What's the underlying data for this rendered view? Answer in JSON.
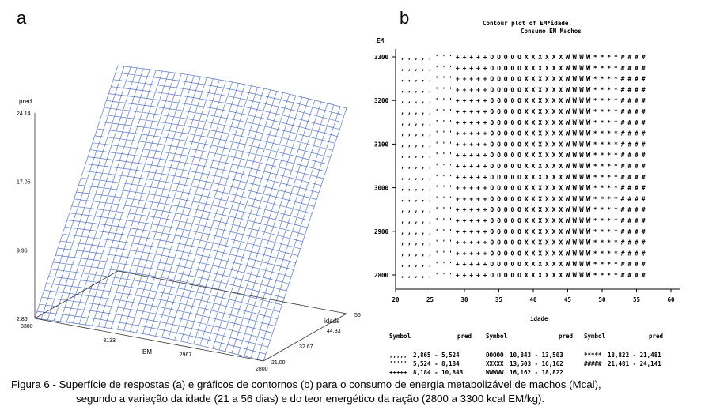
{
  "panels": {
    "a": "a",
    "b": "b"
  },
  "chart_data": [
    {
      "type": "surface",
      "axes": {
        "z": {
          "label": "pred",
          "ticks": [
            "2.86",
            "9.96",
            "17.05",
            "24.14"
          ],
          "range": [
            2.86,
            24.14
          ]
        },
        "x": {
          "label": "EM",
          "ticks": [
            "3300",
            "3133",
            "2967",
            "2800"
          ],
          "range": [
            2800,
            3300
          ]
        },
        "y": {
          "label": "idade",
          "ticks": [
            "21.00",
            "32.67",
            "44.33",
            "56"
          ],
          "range": [
            21,
            56
          ]
        }
      },
      "surface": {
        "z_at_min_idade": 2.86,
        "z_at_max_idade": 24.14
      }
    },
    {
      "type": "contour",
      "title": [
        "Contour plot of EM*idade,",
        "Consumo EM Machos"
      ],
      "y_axis": {
        "label": "EM",
        "ticks": [
          "3300",
          "3200",
          "3100",
          "3000",
          "2900",
          "2800"
        ],
        "range": [
          2800,
          3300
        ]
      },
      "x_axis": {
        "label": "idade",
        "ticks": [
          "20",
          "25",
          "30",
          "35",
          "40",
          "45",
          "50",
          "55",
          "60"
        ],
        "range": [
          20,
          60
        ]
      },
      "grid": {
        "idade_start": 21,
        "idade_step": 1,
        "n_cols": 36,
        "em_start": 2800,
        "em_step": 25,
        "n_rows": 21
      },
      "band_boundaries": [
        {
          "idade_low": 21,
          "idade_high": 25
        },
        {
          "idade_low": 26,
          "idade_high": 28
        },
        {
          "idade_low": 29,
          "idade_high": 33
        },
        {
          "idade_low": 34,
          "idade_high": 38
        },
        {
          "idade_low": 39,
          "idade_high": 44
        },
        {
          "idade_low": 45,
          "idade_high": 48
        },
        {
          "idade_low": 49,
          "idade_high": 52
        },
        {
          "idade_low": 53,
          "idade_high": 56
        }
      ],
      "legend": {
        "header": {
          "symbol": "Symbol",
          "pred": "pred"
        },
        "entries": [
          {
            "symbol": ",,,,,",
            "range": "2,865 - 5,524"
          },
          {
            "symbol": "'''''",
            "range": "5,524 - 8,184"
          },
          {
            "symbol": "+++++",
            "range": "8,184 - 10,843"
          },
          {
            "symbol": "OOOOO",
            "range": "10,843 - 13,503"
          },
          {
            "symbol": "XXXXX",
            "range": "13,503 - 16,162"
          },
          {
            "symbol": "WWWWW",
            "range": "16,162 - 18,822"
          },
          {
            "symbol": "*****",
            "range": "18,822 - 21,481"
          },
          {
            "symbol": "#####",
            "range": "21,481 - 24,141"
          }
        ]
      }
    }
  ],
  "caption": {
    "line1": "Figura 6 - Superfície de respostas (a) e gráficos de contornos (b) para o consumo de energia metabolizável de machos (Mcal),",
    "line2": "segundo a variação da idade (21 a 56 dias) e do teor energético da ração (2800 a 3300 kcal EM/kg)."
  }
}
